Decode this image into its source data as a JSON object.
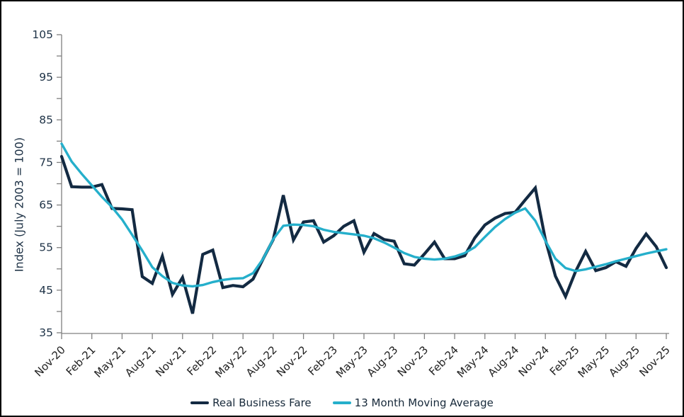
{
  "chart": {
    "y_axis_title": "Index (July 2003 = 100)",
    "legend": [
      {
        "label": "Real Business Fare",
        "color": "#132A42"
      },
      {
        "label": "13 Month Moving Average",
        "color": "#25AFCB"
      }
    ]
  },
  "chart_data": {
    "type": "line",
    "title": "",
    "xlabel": "",
    "ylabel": "Index (July 2003 = 100)",
    "ylim": [
      35,
      105
    ],
    "y_major_tick_step": 10,
    "y_minor_tick_step": 5,
    "grid": false,
    "legend_position": "bottom",
    "x": [
      "Nov-20",
      "Dec-20",
      "Jan-21",
      "Feb-21",
      "Mar-21",
      "Apr-21",
      "May-21",
      "Jun-21",
      "Jul-21",
      "Aug-21",
      "Sep-21",
      "Oct-21",
      "Nov-21",
      "Dec-21",
      "Jan-22",
      "Feb-22",
      "Mar-22",
      "Apr-22",
      "May-22",
      "Jun-22",
      "Jul-22",
      "Aug-22",
      "Sep-22",
      "Oct-22",
      "Nov-22",
      "Dec-22",
      "Jan-23",
      "Feb-23",
      "Mar-23",
      "Apr-23",
      "May-23",
      "Jun-23",
      "Jul-23",
      "Aug-23",
      "Sep-23",
      "Oct-23",
      "Nov-23",
      "Dec-23",
      "Jan-24",
      "Feb-24",
      "Mar-24",
      "Apr-24",
      "May-24",
      "Jun-24",
      "Jul-24",
      "Aug-24",
      "Sep-24",
      "Oct-24",
      "Nov-24",
      "Dec-24",
      "Jan-25",
      "Feb-25",
      "Mar-25",
      "Apr-25",
      "May-25",
      "Jun-25",
      "Jul-25",
      "Aug-25",
      "Sep-25",
      "Oct-25",
      "Nov-25"
    ],
    "x_tick_labels": [
      "Nov-20",
      "Feb-21",
      "May-21",
      "Aug-21",
      "Nov-21",
      "Feb-22",
      "May-22",
      "Aug-22",
      "Nov-22",
      "Feb-23",
      "May-23",
      "Aug-23",
      "Nov-23",
      "Feb-24",
      "May-24",
      "Aug-24",
      "Nov-24",
      "Feb-25",
      "May-25",
      "Aug-25",
      "Nov-25"
    ],
    "x_tick_every": 3,
    "series": [
      {
        "name": "Real Business Fare",
        "color": "#132A42",
        "stroke_width": 4.2,
        "values": [
          76.4,
          69.3,
          69.2,
          69.2,
          69.8,
          64.2,
          64.1,
          63.9,
          48.2,
          46.6,
          53.0,
          44.0,
          48.0,
          39.5,
          53.4,
          54.4,
          45.6,
          46.1,
          45.8,
          47.6,
          52.4,
          56.9,
          67.3,
          56.8,
          61.0,
          61.3,
          56.3,
          57.8,
          60.0,
          61.3,
          53.9,
          58.3,
          56.9,
          56.5,
          51.2,
          50.9,
          53.5,
          56.3,
          52.4,
          52.4,
          53.1,
          57.3,
          60.3,
          61.9,
          63.0,
          63.3,
          66.2,
          69.0,
          56.9,
          48.3,
          43.5,
          49.4,
          54.1,
          49.6,
          50.3,
          51.7,
          50.6,
          54.8,
          58.2,
          55.2,
          50.3
        ]
      },
      {
        "name": "13 Month Moving Average",
        "color": "#25AFCB",
        "stroke_width": 3.4,
        "values": [
          79.4,
          75.2,
          72.3,
          69.6,
          66.9,
          64.5,
          61.6,
          58.0,
          54.3,
          50.4,
          48.3,
          46.7,
          46.1,
          45.9,
          46.2,
          46.9,
          47.4,
          47.7,
          47.8,
          49.0,
          52.4,
          57.0,
          60.1,
          60.4,
          60.3,
          60.0,
          59.2,
          58.7,
          58.4,
          58.1,
          57.8,
          57.2,
          56.2,
          55.0,
          53.7,
          52.8,
          52.4,
          52.2,
          52.4,
          52.9,
          53.7,
          55.1,
          57.5,
          59.8,
          61.7,
          63.2,
          64.2,
          61.3,
          56.6,
          52.4,
          50.2,
          49.5,
          49.9,
          50.5,
          51.1,
          51.8,
          52.4,
          53.0,
          53.6,
          54.1,
          54.6
        ]
      }
    ]
  }
}
